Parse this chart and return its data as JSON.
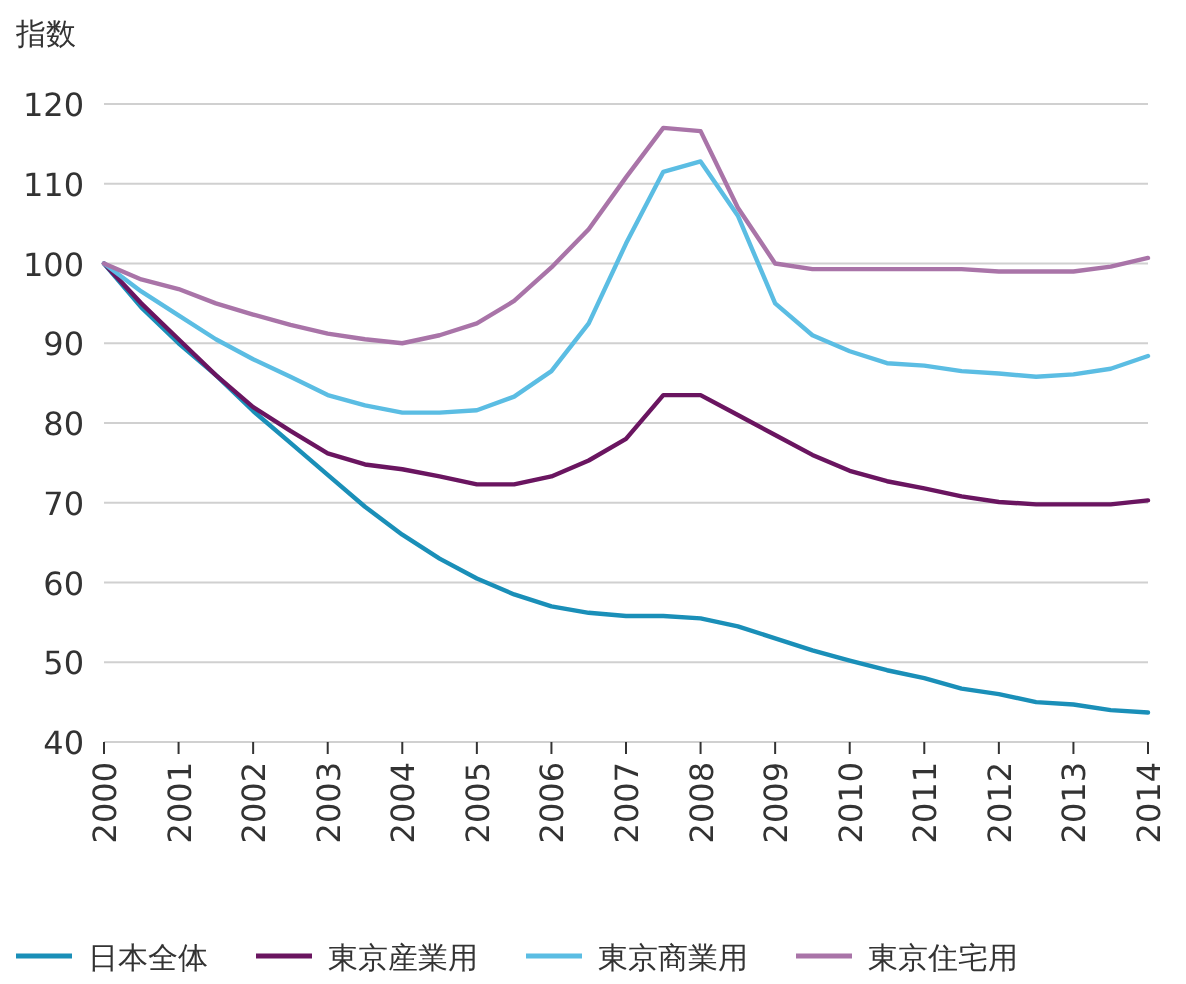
{
  "chart_data": {
    "type": "line",
    "ylabel": "指数",
    "xlim": [
      2000,
      2014
    ],
    "ylim": [
      40,
      120
    ],
    "xticks": [
      2000,
      2001,
      2002,
      2003,
      2004,
      2005,
      2006,
      2007,
      2008,
      2009,
      2010,
      2011,
      2012,
      2013,
      2014
    ],
    "yticks": [
      40,
      50,
      60,
      70,
      80,
      90,
      100,
      110,
      120
    ],
    "grid": "y",
    "legend": "bottom",
    "x": [
      2000,
      2000.5,
      2001,
      2001.5,
      2002,
      2002.5,
      2003,
      2003.5,
      2004,
      2004.5,
      2005,
      2005.5,
      2006,
      2006.5,
      2007,
      2007.5,
      2008,
      2008.5,
      2009,
      2009.5,
      2010,
      2010.5,
      2011,
      2011.5,
      2012,
      2012.5,
      2013,
      2013.5,
      2014
    ],
    "series": [
      {
        "name": "日本全体",
        "color": "#1a8fb8",
        "values": [
          100,
          94.5,
          90,
          86,
          81.5,
          77.5,
          73.5,
          69.5,
          66,
          63,
          60.5,
          58.5,
          57,
          56.2,
          55.8,
          55.8,
          55.5,
          54.5,
          53,
          51.5,
          50.2,
          49,
          48,
          46.7,
          46,
          45,
          44.7,
          44,
          43.7
        ]
      },
      {
        "name": "東京産業用",
        "color": "#6a1560",
        "values": [
          100,
          95,
          90.5,
          86,
          82,
          79,
          76.2,
          74.8,
          74.2,
          73.3,
          72.3,
          72.3,
          73.3,
          75.3,
          78,
          83.5,
          83.5,
          81,
          78.5,
          76,
          74,
          72.7,
          71.8,
          70.8,
          70.1,
          69.8,
          69.8,
          69.8,
          70.3
        ]
      },
      {
        "name": "東京商業用",
        "color": "#5bbde3",
        "values": [
          100,
          96.5,
          93.5,
          90.5,
          88,
          85.8,
          83.5,
          82.2,
          81.3,
          81.3,
          81.6,
          83.3,
          86.5,
          92.5,
          102.5,
          111.5,
          112.8,
          106,
          95,
          91,
          89,
          87.5,
          87.2,
          86.5,
          86.2,
          85.8,
          86.1,
          86.8,
          88.4
        ]
      },
      {
        "name": "東京住宅用",
        "color": "#a974a8",
        "values": [
          100,
          98,
          96.8,
          95,
          93.6,
          92.3,
          91.2,
          90.5,
          90,
          91,
          92.5,
          95.3,
          99.5,
          104.3,
          110.8,
          117,
          116.6,
          107,
          100,
          99.3,
          99.3,
          99.3,
          99.3,
          99.3,
          99,
          99,
          99,
          99.6,
          100.7
        ]
      }
    ]
  }
}
